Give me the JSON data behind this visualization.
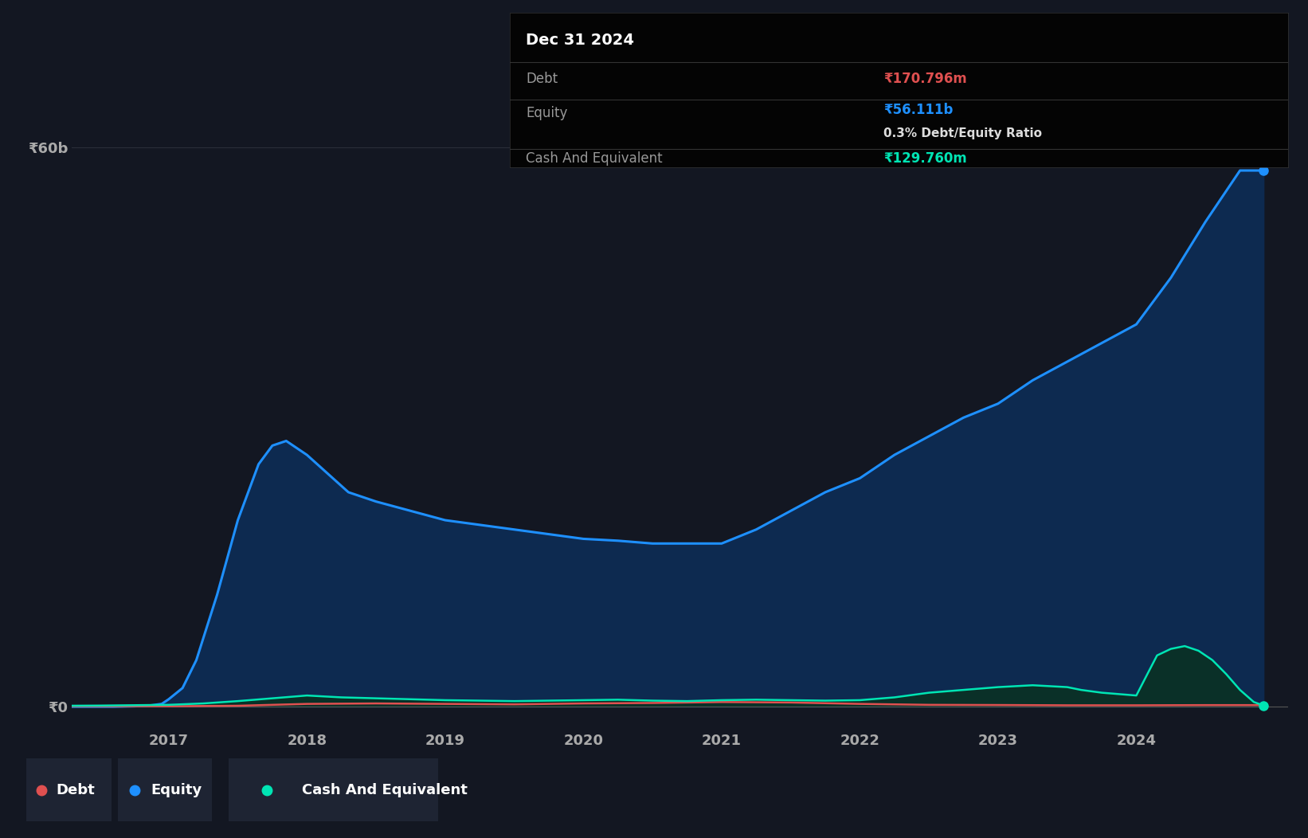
{
  "background_color": "#131722",
  "plot_bg_color": "#131722",
  "grid_color": "#2a2e39",
  "ylabel_60b": "₹60b",
  "ylabel_0": "₹0",
  "x_ticks": [
    2017,
    2018,
    2019,
    2020,
    2021,
    2022,
    2023,
    2024
  ],
  "ylim_min": -1500000000.0,
  "ylim_max": 65000000000.0,
  "xlim_start": 2016.3,
  "xlim_end": 2025.1,
  "equity_color": "#1e90ff",
  "debt_color": "#e05050",
  "cash_color": "#00e5b4",
  "equity_fill": "#0d2a50",
  "cash_fill": "#0a3028",
  "tooltip": {
    "date": "Dec 31 2024",
    "debt_label": "Debt",
    "debt_value": "₹170.796m",
    "equity_label": "Equity",
    "equity_value": "₹56.111b",
    "ratio": "0.3% Debt/Equity Ratio",
    "cash_label": "Cash And Equivalent",
    "cash_value": "₹129.760m",
    "bg": "#040404",
    "text_color": "#999999",
    "title_color": "#ffffff",
    "debt_val_color": "#e05050",
    "equity_val_color": "#1e90ff",
    "cash_val_color": "#00e5b4",
    "ratio_color": "#dddddd"
  },
  "legend": {
    "debt_label": "Debt",
    "equity_label": "Equity",
    "cash_label": "Cash And Equivalent",
    "debt_color": "#e05050",
    "equity_color": "#1e90ff",
    "cash_color": "#00e5b4",
    "box_bg": "#1e2433",
    "text_color": "#ffffff"
  },
  "equity_x": [
    2016.25,
    2016.4,
    2016.6,
    2016.75,
    2016.85,
    2016.95,
    2017.0,
    2017.1,
    2017.2,
    2017.35,
    2017.5,
    2017.65,
    2017.75,
    2017.85,
    2017.95,
    2018.0,
    2018.15,
    2018.3,
    2018.5,
    2018.75,
    2019.0,
    2019.25,
    2019.5,
    2019.75,
    2020.0,
    2020.25,
    2020.5,
    2020.75,
    2021.0,
    2021.25,
    2021.5,
    2021.75,
    2022.0,
    2022.25,
    2022.5,
    2022.75,
    2023.0,
    2023.25,
    2023.5,
    2023.75,
    2024.0,
    2024.25,
    2024.5,
    2024.75,
    2024.92
  ],
  "equity_y": [
    0.0,
    0.0,
    0.0,
    50000000.0,
    100000000.0,
    300000000.0,
    800000000.0,
    2000000000.0,
    5000000000.0,
    12000000000.0,
    20000000000.0,
    26000000000.0,
    28000000000.0,
    28500000000.0,
    27500000000.0,
    27000000000.0,
    25000000000.0,
    23000000000.0,
    22000000000.0,
    21000000000.0,
    20000000000.0,
    19500000000.0,
    19000000000.0,
    18500000000.0,
    18000000000.0,
    17800000000.0,
    17500000000.0,
    17500000000.0,
    17500000000.0,
    19000000000.0,
    21000000000.0,
    23000000000.0,
    24500000000.0,
    27000000000.0,
    29000000000.0,
    31000000000.0,
    32500000000.0,
    35000000000.0,
    37000000000.0,
    39000000000.0,
    41000000000.0,
    46000000000.0,
    52000000000.0,
    57500000000.0,
    57500000000.0
  ],
  "debt_x": [
    2016.25,
    2016.5,
    2017.0,
    2017.5,
    2018.0,
    2018.5,
    2019.0,
    2019.5,
    2020.0,
    2020.5,
    2021.0,
    2021.5,
    2022.0,
    2022.5,
    2023.0,
    2023.5,
    2024.0,
    2024.5,
    2024.92
  ],
  "debt_y": [
    50000000.0,
    50000000.0,
    50000000.0,
    100000000.0,
    300000000.0,
    350000000.0,
    300000000.0,
    250000000.0,
    350000000.0,
    400000000.0,
    500000000.0,
    450000000.0,
    300000000.0,
    200000000.0,
    180000000.0,
    150000000.0,
    150000000.0,
    170000000.0,
    170000000.0
  ],
  "cash_x": [
    2016.25,
    2016.5,
    2017.0,
    2017.25,
    2017.5,
    2017.75,
    2018.0,
    2018.25,
    2018.75,
    2019.0,
    2019.25,
    2019.5,
    2019.75,
    2020.0,
    2020.25,
    2020.5,
    2020.75,
    2021.0,
    2021.25,
    2021.5,
    2021.75,
    2022.0,
    2022.25,
    2022.5,
    2022.75,
    2023.0,
    2023.25,
    2023.5,
    2023.6,
    2023.75,
    2024.0,
    2024.08,
    2024.15,
    2024.25,
    2024.35,
    2024.45,
    2024.55,
    2024.65,
    2024.75,
    2024.85,
    2024.92
  ],
  "cash_y": [
    100000000.0,
    120000000.0,
    200000000.0,
    350000000.0,
    600000000.0,
    900000000.0,
    1200000000.0,
    1000000000.0,
    800000000.0,
    700000000.0,
    650000000.0,
    600000000.0,
    650000000.0,
    700000000.0,
    750000000.0,
    650000000.0,
    600000000.0,
    700000000.0,
    750000000.0,
    700000000.0,
    650000000.0,
    700000000.0,
    1000000000.0,
    1500000000.0,
    1800000000.0,
    2100000000.0,
    2300000000.0,
    2100000000.0,
    1800000000.0,
    1500000000.0,
    1200000000.0,
    3500000000.0,
    5500000000.0,
    6200000000.0,
    6500000000.0,
    6000000000.0,
    5000000000.0,
    3500000000.0,
    1800000000.0,
    500000000.0,
    130000000.0
  ]
}
